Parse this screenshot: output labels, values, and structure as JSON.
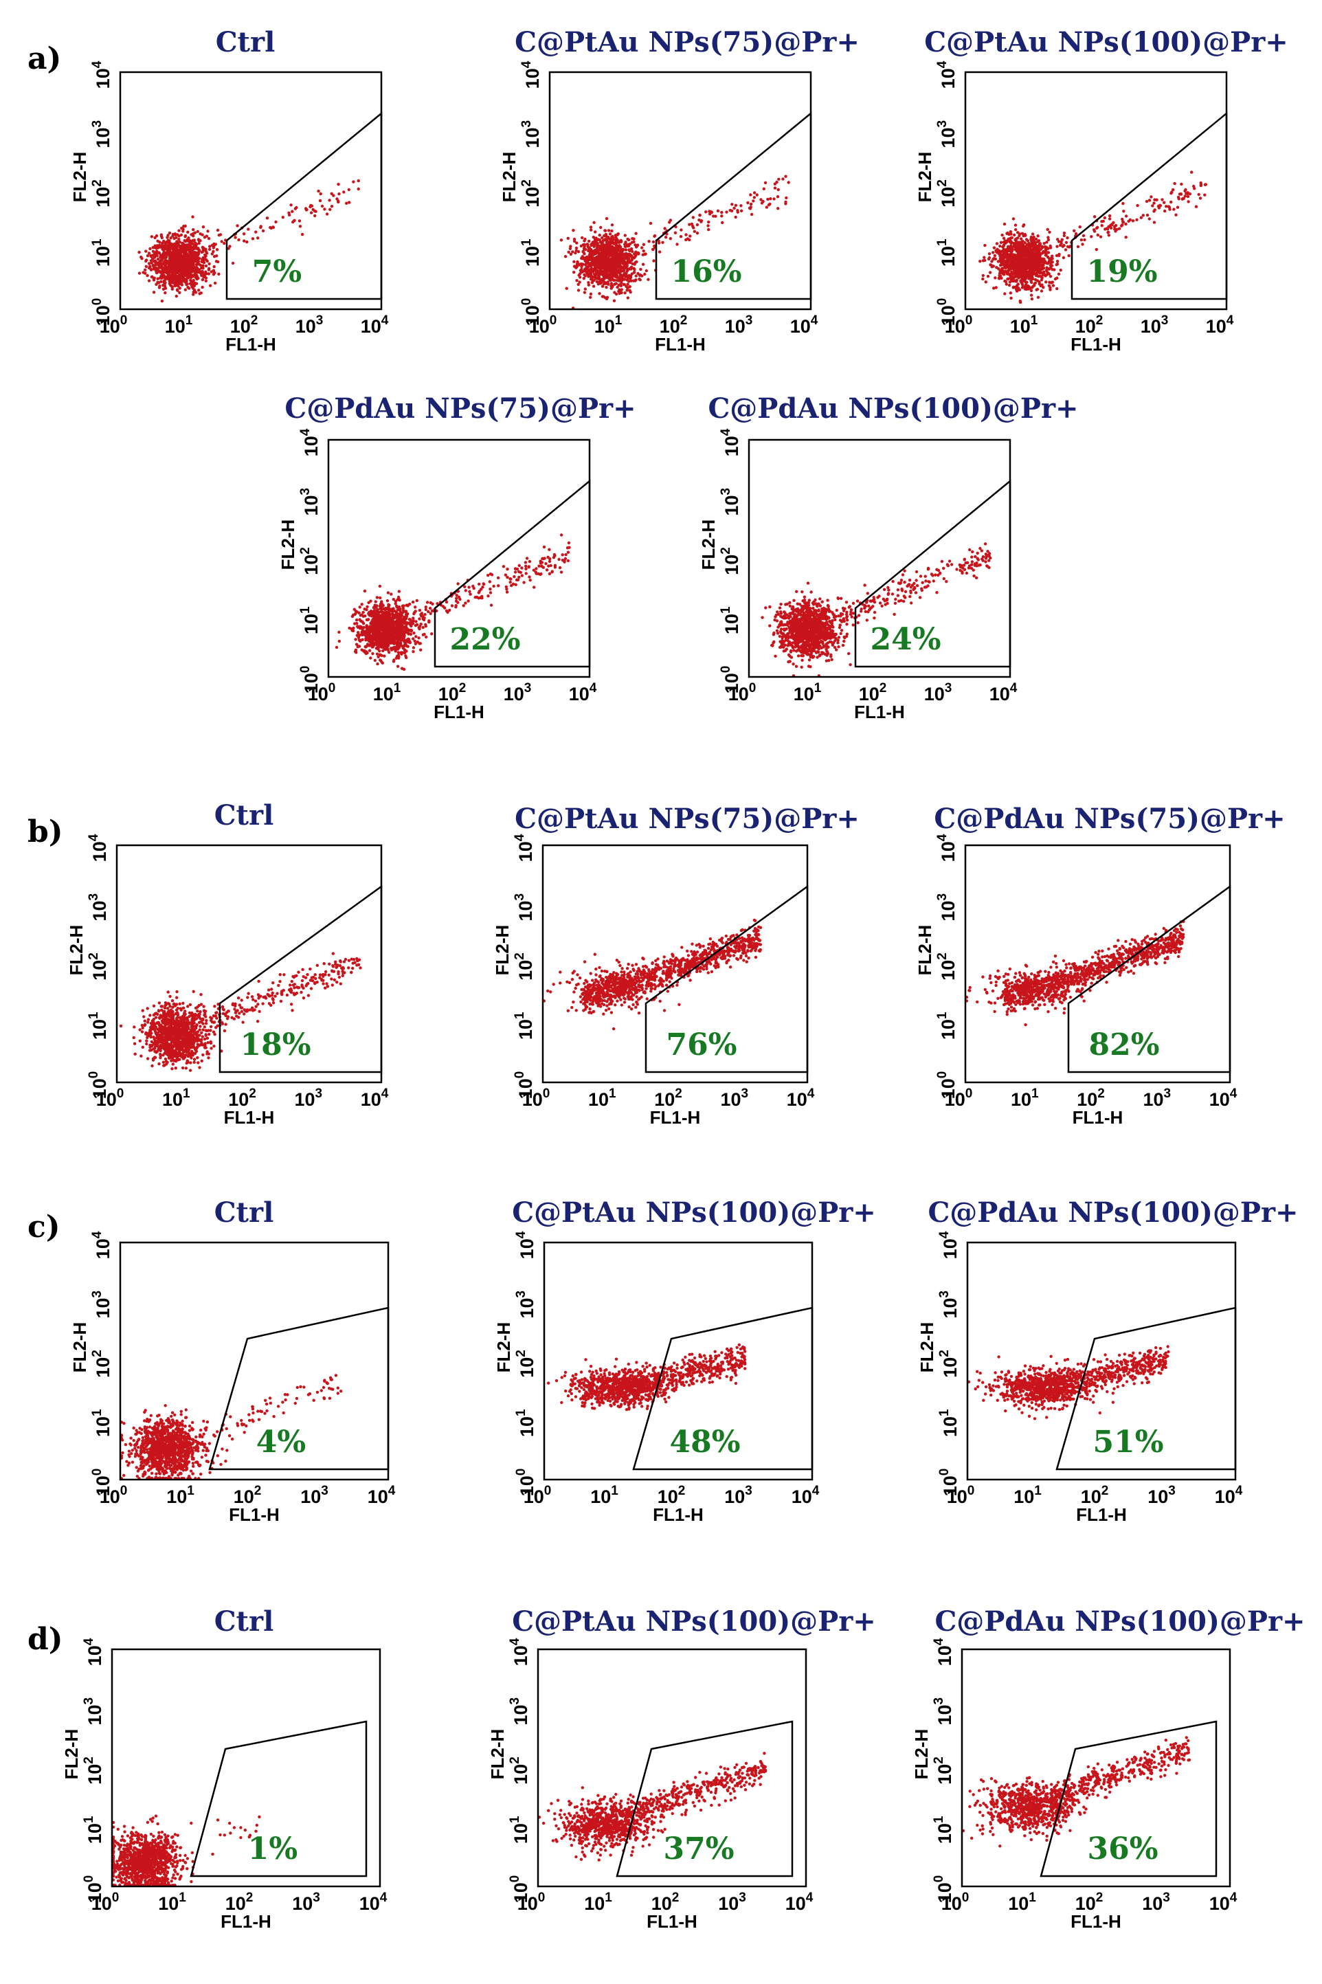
{
  "chart_data": {
    "type": "scatter",
    "panels": [
      {
        "letter": "a)",
        "title": "Ctrl",
        "gate_percent": "7%",
        "xlabel": "FL1-H",
        "ylabel": "FL2-H",
        "density": "low"
      },
      {
        "letter": "",
        "title": "C@PtAu NPs(75)@Pr+",
        "gate_percent": "16%",
        "xlabel": "FL1-H",
        "ylabel": "FL2-H",
        "density": "low"
      },
      {
        "letter": "",
        "title": "C@PtAu NPs(100)@Pr+",
        "gate_percent": "19%",
        "xlabel": "FL1-H",
        "ylabel": "FL2-H",
        "density": "low"
      },
      {
        "letter": "",
        "title": "C@PdAu NPs(75)@Pr+",
        "gate_percent": "22%",
        "xlabel": "FL1-H",
        "ylabel": "FL2-H",
        "density": "low"
      },
      {
        "letter": "",
        "title": "C@PdAu NPs(100)@Pr+",
        "gate_percent": "24%",
        "xlabel": "FL1-H",
        "ylabel": "FL2-H",
        "density": "low"
      },
      {
        "letter": "b)",
        "title": "Ctrl",
        "gate_percent": "18%",
        "xlabel": "FL1-H",
        "ylabel": "FL2-H",
        "density": "low"
      },
      {
        "letter": "",
        "title": "C@PtAu NPs(75)@Pr+",
        "gate_percent": "76%",
        "xlabel": "FL1-H",
        "ylabel": "FL2-H",
        "density": "high"
      },
      {
        "letter": "",
        "title": "C@PdAu NPs(75)@Pr+",
        "gate_percent": "82%",
        "xlabel": "FL1-H",
        "ylabel": "FL2-H",
        "density": "high"
      },
      {
        "letter": "c)",
        "title": "Ctrl",
        "gate_percent": "4%",
        "xlabel": "FL1-H",
        "ylabel": "FL2-H",
        "density": "low"
      },
      {
        "letter": "",
        "title": "C@PtAu NPs(100)@Pr+",
        "gate_percent": "48%",
        "xlabel": "FL1-H",
        "ylabel": "FL2-H",
        "density": "mid"
      },
      {
        "letter": "",
        "title": "C@PdAu NPs(100)@Pr+",
        "gate_percent": "51%",
        "xlabel": "FL1-H",
        "ylabel": "FL2-H",
        "density": "mid"
      },
      {
        "letter": "d)",
        "title": "Ctrl",
        "gate_percent": "1%",
        "xlabel": "FL1-H",
        "ylabel": "FL2-H",
        "density": "low"
      },
      {
        "letter": "",
        "title": "C@PtAu NPs(100)@Pr+",
        "gate_percent": "37%",
        "xlabel": "FL1-H",
        "ylabel": "FL2-H",
        "density": "mid"
      },
      {
        "letter": "",
        "title": "C@PdAu NPs(100)@Pr+",
        "gate_percent": "36%",
        "xlabel": "FL1-H",
        "ylabel": "FL2-H",
        "density": "mid"
      }
    ],
    "x_scale": "log",
    "y_scale": "log",
    "xlim": [
      1,
      10000
    ],
    "ylim": [
      1,
      10000
    ],
    "x_ticks": [
      "10",
      "10",
      "10",
      "10",
      "10"
    ],
    "x_tick_exponents": [
      "0",
      "1",
      "2",
      "3",
      "4"
    ],
    "y_ticks": [
      "10",
      "10",
      "10",
      "10",
      "10"
    ],
    "y_tick_exponents": [
      "0",
      "1",
      "2",
      "3",
      "4"
    ],
    "grid": false,
    "legend": "none"
  },
  "colors": {
    "dots": "#c8141b",
    "title": "#1a2272",
    "percent": "#177a22",
    "axis": "#000000"
  }
}
